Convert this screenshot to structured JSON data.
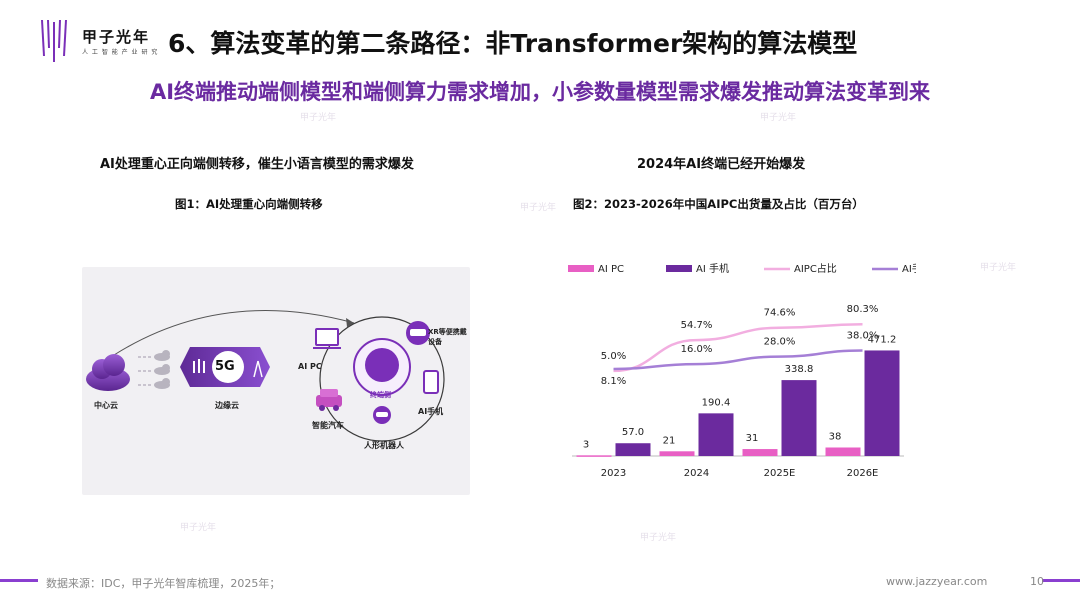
{
  "brand": {
    "name": "甲子光年",
    "tagline": "人 工 智 能 产 业 研 究"
  },
  "header": {
    "title": "6、算法变革的第二条路径：非Transformer架构的算法模型",
    "subtitle": "AI终端推动端侧模型和端侧算力需求增加，小参数量模型需求爆发推动算法变革到来"
  },
  "left": {
    "section_title": "AI处理重心正向端侧转移，催生小语言模型的需求爆发",
    "figure_title": "图1：AI处理重心向端侧转移",
    "diagram": {
      "cloud_center": "中心云",
      "edge_cloud": "边缘云",
      "fiveg": "5G",
      "ai_pc": "AI PC",
      "xr": "XR等便携戴设备",
      "device_side": "终端侧",
      "ai_phone": "AI手机",
      "car": "智能汽车",
      "robot": "人形机器人"
    }
  },
  "right": {
    "section_title": "2024年AI终端已经开始爆发",
    "figure_title": "图2：2023-2026年中国AIPC出货量及占比（百万台）"
  },
  "chart_data": {
    "type": "bar",
    "categories": [
      "2023",
      "2024",
      "2025E",
      "2026E"
    ],
    "series": [
      {
        "name": "AI PC",
        "kind": "bar",
        "values": [
          3,
          21,
          31,
          38
        ],
        "color": "#e85fc4"
      },
      {
        "name": "AI 手机",
        "kind": "bar",
        "values": [
          57.0,
          190.4,
          338.8,
          471.2
        ],
        "color": "#6b2a9e"
      },
      {
        "name": "AIPC占比",
        "kind": "line",
        "values": [
          5.0,
          54.7,
          74.6,
          80.3
        ],
        "unit": "%",
        "color": "#f2aee0"
      },
      {
        "name": "AI手机占比",
        "kind": "line",
        "values": [
          8.1,
          16.0,
          28.0,
          38.0
        ],
        "unit": "%",
        "color": "#a57fd6"
      }
    ],
    "bar_labels": {
      "ai_pc": [
        "3",
        "21",
        "31",
        "38"
      ],
      "ai_phone": [
        "57.0",
        "190.4",
        "338.8",
        "471.2"
      ]
    },
    "line_labels": {
      "aipc_share": [
        "5.0%",
        "54.7%",
        "74.6%",
        "80.3%"
      ],
      "phone_share": [
        "8.1%",
        "16.0%",
        "28.0%",
        "38.0%"
      ]
    },
    "legend_position": "top",
    "grid": false
  },
  "footer": {
    "source": "数据来源：IDC，甲子光年智库梳理，2025年；",
    "url": "www.jazzyear.com",
    "page": "10"
  }
}
